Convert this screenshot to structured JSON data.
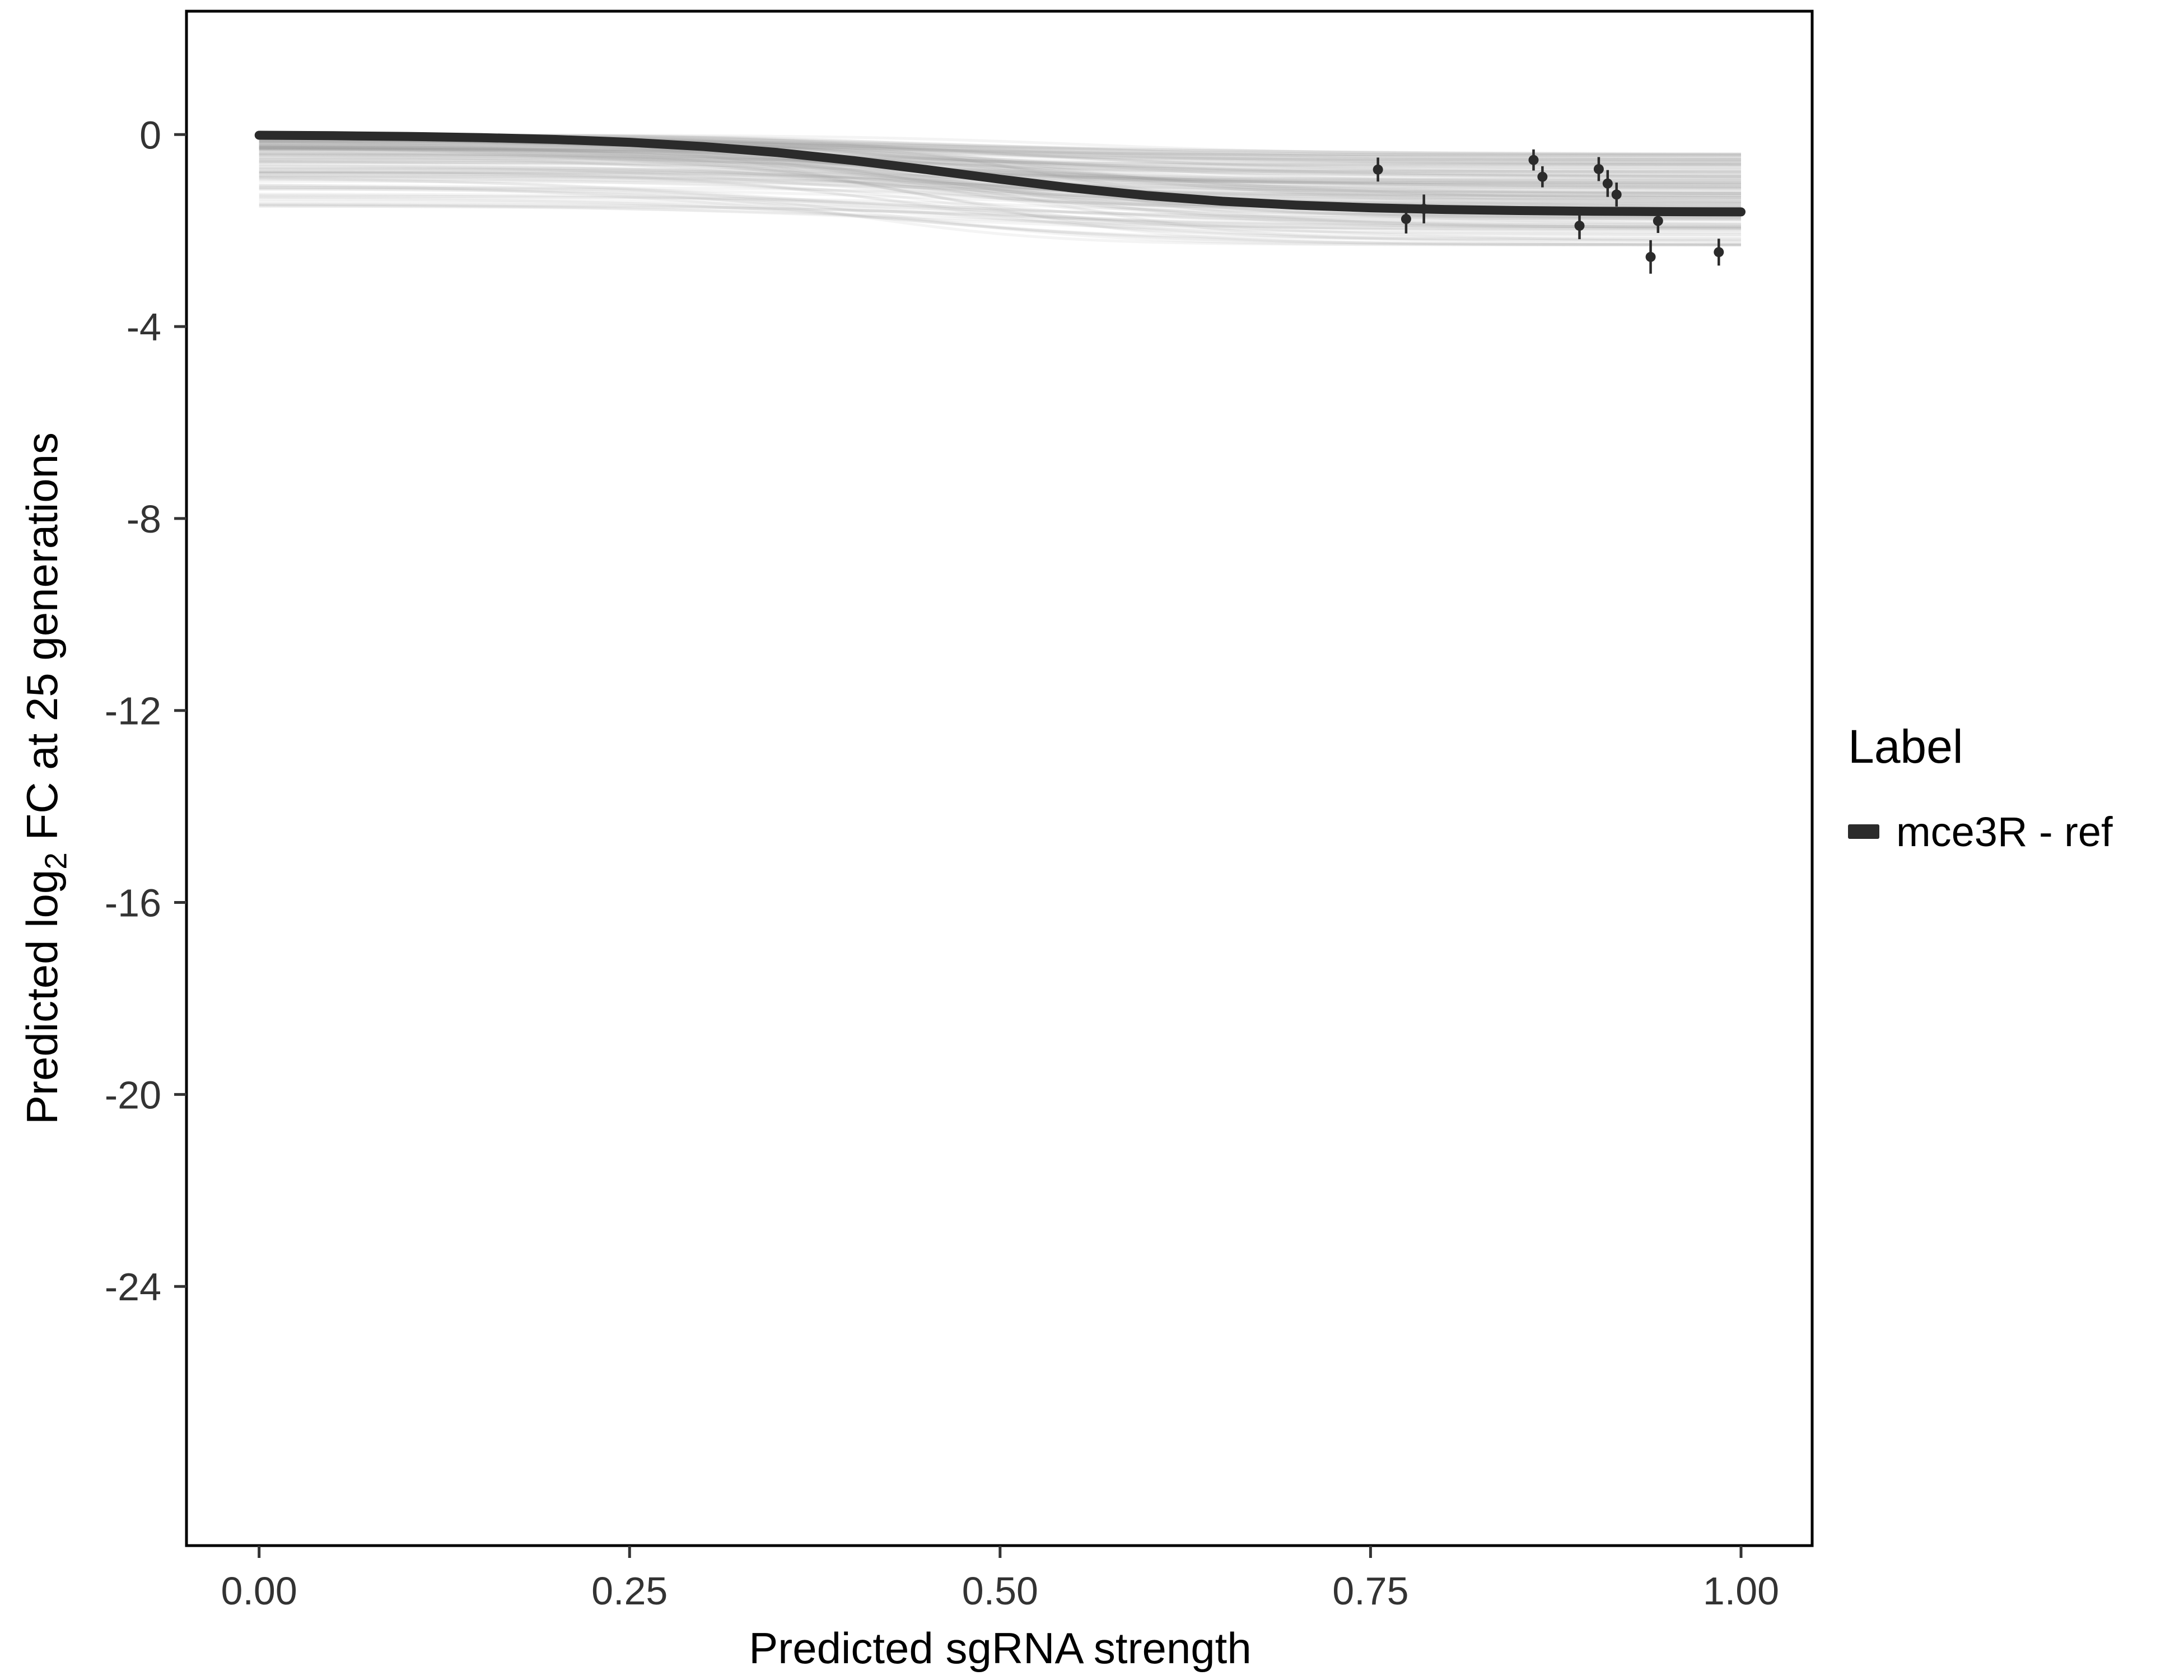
{
  "panel": {
    "background": "#ffffff",
    "border_color": "#000000"
  },
  "chart_data": {
    "type": "line",
    "title": "",
    "xlabel": "Predicted sgRNA strength",
    "ylabel": "Predicted log2 FC at 25 generations",
    "ylabel_parts": {
      "pre": "Predicted  log",
      "sub": "2",
      "post": " FC at 25 generations"
    },
    "grid": false,
    "xlim": [
      -0.049,
      1.048
    ],
    "ylim": [
      -29.4,
      2.57
    ],
    "x_ticks": {
      "values": [
        0,
        0.25,
        0.5,
        0.75,
        1.0
      ],
      "labels": [
        "0.00",
        "0.25",
        "0.50",
        "0.75",
        "1.00"
      ]
    },
    "y_ticks": {
      "values": [
        0,
        -4,
        -8,
        -12,
        -16,
        -20,
        -24
      ],
      "labels": [
        "0",
        "-4",
        "-8",
        "-12",
        "-16",
        "-20",
        "-24"
      ]
    },
    "legend": {
      "title": "Label",
      "position": "right",
      "entries": [
        {
          "label": "mce3R - ref",
          "color": "#2b2b2b",
          "swatch": "thick-line"
        }
      ]
    },
    "series": [
      {
        "name": "mce3R - ref",
        "type": "line",
        "color": "#2b2b2b",
        "width": 16,
        "x": [
          0.0,
          0.05,
          0.1,
          0.15,
          0.2,
          0.25,
          0.3,
          0.35,
          0.4,
          0.45,
          0.5,
          0.55,
          0.6,
          0.65,
          0.7,
          0.75,
          0.8,
          0.85,
          0.9,
          0.95,
          1.0
        ],
        "y": [
          -0.015,
          -0.024,
          -0.039,
          -0.063,
          -0.102,
          -0.162,
          -0.25,
          -0.375,
          -0.538,
          -0.729,
          -0.93,
          -1.118,
          -1.273,
          -1.39,
          -1.472,
          -1.527,
          -1.562,
          -1.584,
          -1.598,
          -1.607,
          -1.612
        ]
      }
    ],
    "points": {
      "name": "observed sgRNA fitted values with error bars",
      "color": "#2b2b2b",
      "items": [
        {
          "x": 0.755,
          "y": -0.73,
          "err": 0.25
        },
        {
          "x": 0.774,
          "y": -1.76,
          "err": 0.3
        },
        {
          "x": 0.786,
          "y": -1.55,
          "err": 0.3
        },
        {
          "x": 0.86,
          "y": -0.53,
          "err": 0.22
        },
        {
          "x": 0.866,
          "y": -0.88,
          "err": 0.22
        },
        {
          "x": 0.891,
          "y": -1.9,
          "err": 0.28
        },
        {
          "x": 0.904,
          "y": -0.72,
          "err": 0.25
        },
        {
          "x": 0.91,
          "y": -1.02,
          "err": 0.28
        },
        {
          "x": 0.916,
          "y": -1.25,
          "err": 0.25
        },
        {
          "x": 0.939,
          "y": -2.55,
          "err": 0.35
        },
        {
          "x": 0.944,
          "y": -1.8,
          "err": 0.25
        },
        {
          "x": 0.985,
          "y": -2.45,
          "err": 0.28
        }
      ]
    },
    "ensemble": {
      "description": "posterior draw sigmoid curves forming the gray band between 0 and about -2.3",
      "count": 150,
      "color": "#9c9c9c",
      "opacity": 0.11,
      "width": 5,
      "seed": 11,
      "y_range_at_x0": [
        0,
        -1.55
      ],
      "y_range_at_x1": [
        -0.4,
        -2.3
      ]
    }
  }
}
